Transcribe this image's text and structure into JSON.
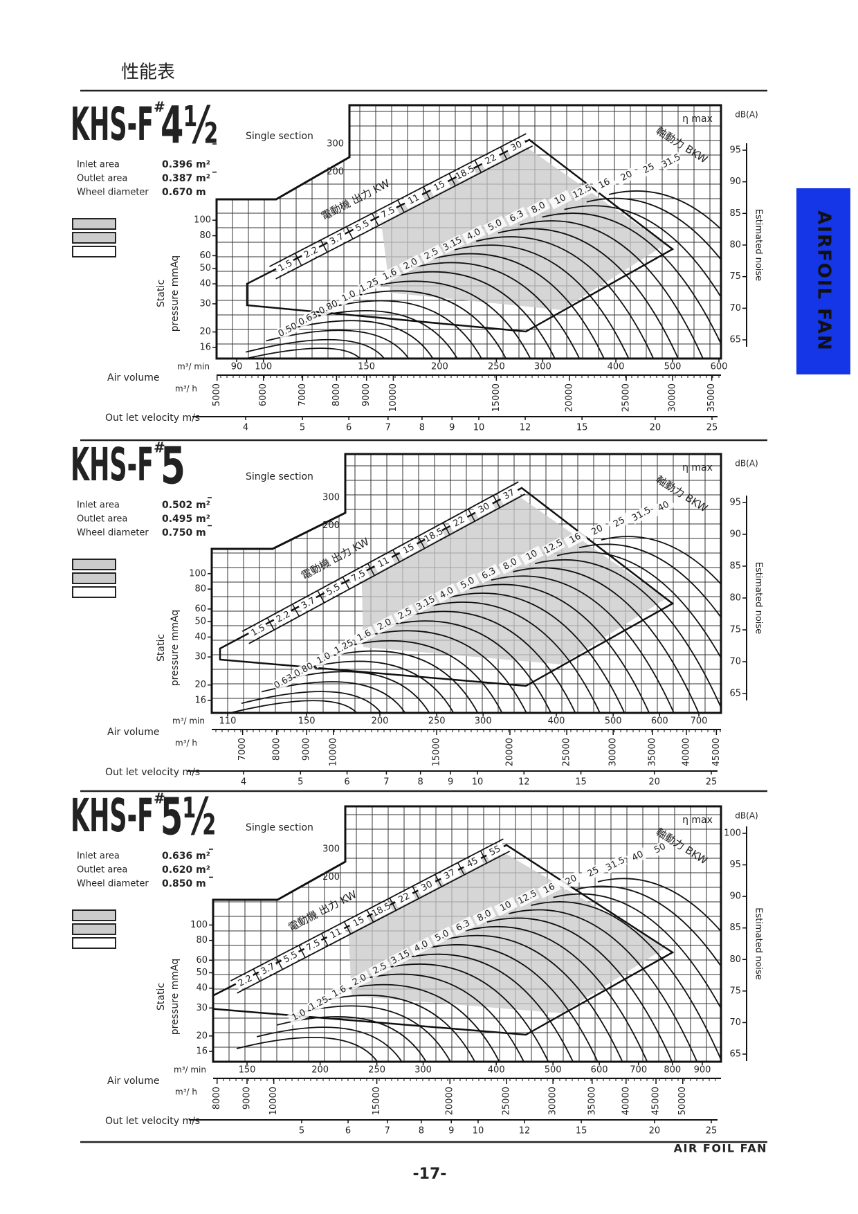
{
  "header": {
    "title": "性能表"
  },
  "side_tab": "AIRFOIL FAN",
  "panels": [
    {
      "model": "KHS-F",
      "mark": "#",
      "size": "4½",
      "section": "Single section",
      "specs": [
        {
          "label": "Inlet area",
          "value": "0.396 m²"
        },
        {
          "label": "Outlet area",
          "value": "0.387 m²"
        },
        {
          "label": "Wheel diameter",
          "value": "0.670 m"
        }
      ],
      "motor_label": "電動機 出力 KW",
      "motor_kw": [
        "1.5",
        "2.2",
        "3.7",
        "5.5",
        "7.5",
        "11",
        "15",
        "18.5",
        "22",
        "30"
      ],
      "shaft_label": "軸動力 BKW",
      "shaft_kw": [
        "0.50",
        "0.63",
        "0.80",
        "1.0",
        "1.25",
        "1.6",
        "2.0",
        "2.5",
        "3.15",
        "4.0",
        "5.0",
        "6.3",
        "8.0",
        "10",
        "12.5",
        "16",
        "20",
        "25",
        "31.5"
      ],
      "eta": "η max",
      "pressure_label": [
        "Static",
        "pressure mmAq"
      ],
      "pressure_ticks": [
        16,
        20,
        30,
        40,
        50,
        60,
        80,
        100,
        200,
        300
      ],
      "flow_min_unit": "m³/ min",
      "flow_min_ticks": [
        90,
        100,
        150,
        200,
        250,
        300,
        400,
        500,
        600
      ],
      "air_volume": "Air volume",
      "flow_h_unit": "m³/ h",
      "flow_h_ticks": [
        5000,
        6000,
        7000,
        8000,
        9000,
        10000,
        15000,
        20000,
        25000,
        30000,
        35000
      ],
      "velocity_label": "Out let velocity m/s",
      "velocity_ticks": [
        4,
        5,
        6,
        7,
        8,
        9,
        10,
        12,
        15,
        20,
        25
      ],
      "db_unit": "dB(A)",
      "db_ticks": [
        65,
        70,
        75,
        80,
        85,
        90,
        95
      ],
      "noise_label": "Estimated noise"
    },
    {
      "model": "KHS-F",
      "mark": "#",
      "size": "5",
      "section": "Single section",
      "specs": [
        {
          "label": "Inlet area",
          "value": "0.502 m²"
        },
        {
          "label": "Outlet area",
          "value": "0.495 m²"
        },
        {
          "label": "Wheel diameter",
          "value": "0.750 m"
        }
      ],
      "motor_label": "電動機 出力 KW",
      "motor_kw": [
        "1.5",
        "2.2",
        "3.7",
        "5.5",
        "7.5",
        "11",
        "15",
        "18.5",
        "22",
        "30",
        "37"
      ],
      "shaft_label": "軸動力 BKW",
      "shaft_kw": [
        "0.63",
        "0.80",
        "1.0",
        "1.25",
        "1.6",
        "2.0",
        "2.5",
        "3.15",
        "4.0",
        "5.0",
        "6.3",
        "8.0",
        "10",
        "12.5",
        "16",
        "20",
        "25",
        "31.5",
        "40"
      ],
      "eta": "η max",
      "pressure_label": [
        "Static",
        "pressure mmAq"
      ],
      "pressure_ticks": [
        16,
        20,
        30,
        40,
        50,
        60,
        80,
        100,
        200,
        300
      ],
      "flow_min_unit": "m³/ min",
      "flow_min_ticks": [
        110,
        150,
        200,
        250,
        300,
        400,
        500,
        600,
        700
      ],
      "air_volume": "Air volume",
      "flow_h_unit": "m³/ h",
      "flow_h_ticks": [
        7000,
        8000,
        9000,
        10000,
        15000,
        20000,
        25000,
        30000,
        35000,
        40000,
        45000
      ],
      "velocity_label": "Out let velocity m/s",
      "velocity_ticks": [
        4,
        5,
        6,
        7,
        8,
        9,
        10,
        12,
        15,
        20,
        25
      ],
      "db_unit": "dB(A)",
      "db_ticks": [
        65,
        70,
        75,
        80,
        85,
        90,
        95
      ],
      "noise_label": "Estimated noise"
    },
    {
      "model": "KHS-F",
      "mark": "#",
      "size": "5½",
      "section": "Single section",
      "specs": [
        {
          "label": "Inlet area",
          "value": "0.636 m²"
        },
        {
          "label": "Outlet area",
          "value": "0.620 m²"
        },
        {
          "label": "Wheel diameter",
          "value": "0.850 m"
        }
      ],
      "motor_label": "電動機 出力 KW",
      "motor_kw": [
        "2.2",
        "3.7",
        "5.5",
        "7.5",
        "11",
        "15",
        "18.5",
        "22",
        "30",
        "37",
        "45",
        "55"
      ],
      "shaft_label": "軸動力 BKW",
      "shaft_kw": [
        "1.0",
        "1.25",
        "1.6",
        "2.0",
        "2.5",
        "3.15",
        "4.0",
        "5.0",
        "6.3",
        "8.0",
        "10",
        "12.5",
        "16",
        "20",
        "25",
        "31.5",
        "40",
        "50"
      ],
      "eta": "η max",
      "pressure_label": [
        "Static",
        "pressure mmAq"
      ],
      "pressure_ticks": [
        16,
        20,
        30,
        40,
        50,
        60,
        80,
        100,
        200,
        300
      ],
      "flow_min_unit": "m³/ min",
      "flow_min_ticks": [
        150,
        200,
        250,
        300,
        400,
        500,
        600,
        700,
        800,
        900
      ],
      "air_volume": "Air volume",
      "flow_h_unit": "m³/ h",
      "flow_h_ticks": [
        8000,
        9000,
        10000,
        15000,
        20000,
        25000,
        30000,
        35000,
        40000,
        45000,
        50000
      ],
      "velocity_label": "Out let velocity m/s",
      "velocity_ticks": [
        5,
        6,
        7,
        8,
        9,
        10,
        12,
        15,
        20,
        25
      ],
      "db_unit": "dB(A)",
      "db_ticks": [
        65,
        70,
        75,
        80,
        85,
        90,
        95,
        100
      ],
      "noise_label": "Estimated noise"
    }
  ],
  "footer": {
    "brand": "AIR FOIL FAN",
    "page": "-17-"
  }
}
